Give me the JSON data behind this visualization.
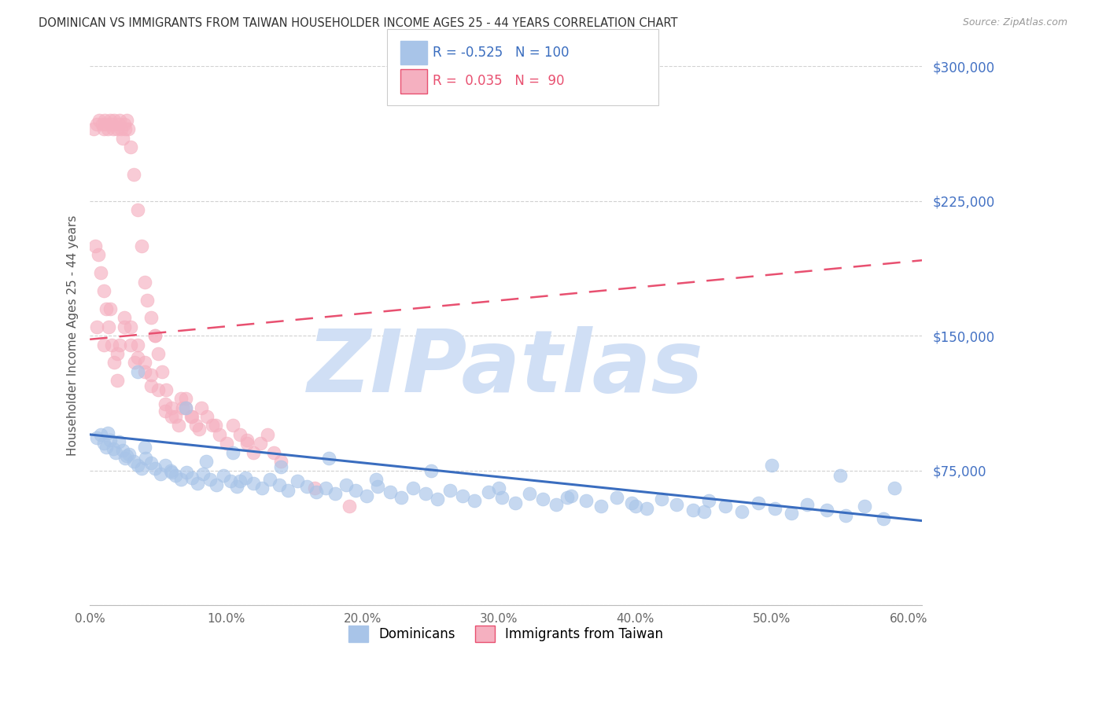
{
  "title": "DOMINICAN VS IMMIGRANTS FROM TAIWAN HOUSEHOLDER INCOME AGES 25 - 44 YEARS CORRELATION CHART",
  "source": "Source: ZipAtlas.com",
  "ylabel": "Householder Income Ages 25 - 44 years",
  "yticks": [
    0,
    75000,
    150000,
    225000,
    300000
  ],
  "ytick_labels": [
    "",
    "$75,000",
    "$150,000",
    "$225,000",
    "$300,000"
  ],
  "xticks": [
    0.0,
    10.0,
    20.0,
    30.0,
    40.0,
    50.0,
    60.0
  ],
  "xtick_labels": [
    "0.0%",
    "10.0%",
    "20.0%",
    "30.0%",
    "40.0%",
    "50.0%",
    "60.0%"
  ],
  "xmin": 0.0,
  "xmax": 61.0,
  "ymin": 0,
  "ymax": 300000,
  "blue_fill": "#a8c4e8",
  "blue_line": "#3a6dbf",
  "pink_fill": "#f5b0c0",
  "pink_edge": "#e85070",
  "pink_line": "#e85070",
  "blue_R": -0.525,
  "blue_N": 100,
  "pink_R": 0.035,
  "pink_N": 90,
  "watermark": "ZIPatlas",
  "watermark_color": "#d0dff5",
  "legend_label_blue": "Dominicans",
  "legend_label_pink": "Immigrants from Taiwan",
  "blue_trend_x0": 0,
  "blue_trend_y0": 95000,
  "blue_trend_x1": 61,
  "blue_trend_y1": 47000,
  "pink_trend_x0": 0,
  "pink_trend_y0": 148000,
  "pink_trend_x1": 61,
  "pink_trend_y1": 192000,
  "blue_x": [
    0.5,
    0.8,
    1.0,
    1.2,
    1.5,
    1.7,
    1.9,
    2.1,
    2.4,
    2.6,
    2.9,
    3.2,
    3.5,
    3.8,
    4.1,
    4.5,
    4.8,
    5.2,
    5.5,
    5.9,
    6.3,
    6.7,
    7.1,
    7.5,
    7.9,
    8.3,
    8.8,
    9.3,
    9.8,
    10.3,
    10.8,
    11.4,
    12.0,
    12.6,
    13.2,
    13.9,
    14.5,
    15.2,
    15.9,
    16.6,
    17.3,
    18.0,
    18.8,
    19.5,
    20.3,
    21.1,
    22.0,
    22.8,
    23.7,
    24.6,
    25.5,
    26.4,
    27.3,
    28.2,
    29.2,
    30.2,
    31.2,
    32.2,
    33.2,
    34.2,
    35.3,
    36.4,
    37.5,
    38.6,
    39.7,
    40.8,
    41.9,
    43.0,
    44.2,
    45.4,
    46.6,
    47.8,
    49.0,
    50.2,
    51.4,
    52.6,
    54.0,
    55.4,
    56.8,
    58.2,
    1.3,
    2.7,
    4.0,
    6.0,
    8.5,
    11.0,
    14.0,
    17.5,
    21.0,
    25.0,
    30.0,
    35.0,
    40.0,
    45.0,
    50.0,
    55.0,
    59.0,
    3.5,
    7.0,
    10.5
  ],
  "blue_y": [
    93000,
    95000,
    90000,
    88000,
    92000,
    87000,
    85000,
    91000,
    86000,
    82000,
    84000,
    80000,
    78000,
    76000,
    82000,
    79000,
    76000,
    73000,
    78000,
    75000,
    72000,
    70000,
    74000,
    71000,
    68000,
    73000,
    70000,
    67000,
    72000,
    69000,
    66000,
    71000,
    68000,
    65000,
    70000,
    67000,
    64000,
    69000,
    66000,
    63000,
    65000,
    62000,
    67000,
    64000,
    61000,
    66000,
    63000,
    60000,
    65000,
    62000,
    59000,
    64000,
    61000,
    58000,
    63000,
    60000,
    57000,
    62000,
    59000,
    56000,
    61000,
    58000,
    55000,
    60000,
    57000,
    54000,
    59000,
    56000,
    53000,
    58000,
    55000,
    52000,
    57000,
    54000,
    51000,
    56000,
    53000,
    50000,
    55000,
    48000,
    96000,
    83000,
    88000,
    74000,
    80000,
    69000,
    77000,
    82000,
    70000,
    75000,
    65000,
    60000,
    55000,
    52000,
    78000,
    72000,
    65000,
    130000,
    110000,
    85000
  ],
  "pink_x": [
    0.3,
    0.5,
    0.7,
    0.9,
    1.0,
    1.1,
    1.2,
    1.3,
    1.5,
    1.6,
    1.7,
    1.8,
    2.0,
    2.1,
    2.2,
    2.3,
    2.4,
    2.5,
    2.6,
    2.7,
    2.8,
    3.0,
    3.2,
    3.5,
    3.8,
    4.0,
    4.2,
    4.5,
    4.8,
    5.0,
    5.3,
    5.6,
    6.0,
    6.3,
    6.7,
    7.0,
    7.4,
    7.8,
    8.2,
    8.6,
    9.0,
    9.5,
    10.0,
    10.5,
    11.0,
    11.5,
    12.0,
    12.5,
    13.0,
    13.5,
    0.4,
    0.6,
    0.8,
    1.0,
    1.2,
    1.4,
    1.6,
    1.8,
    2.0,
    2.5,
    3.0,
    3.5,
    4.0,
    4.5,
    5.0,
    5.5,
    6.0,
    6.5,
    7.0,
    7.5,
    8.0,
    2.2,
    3.3,
    4.8,
    6.8,
    9.2,
    11.5,
    14.0,
    16.5,
    19.0,
    0.5,
    1.0,
    1.5,
    2.0,
    2.5,
    3.0,
    3.5,
    4.0,
    4.5,
    5.5
  ],
  "pink_y": [
    265000,
    268000,
    270000,
    268000,
    265000,
    270000,
    268000,
    265000,
    270000,
    268000,
    265000,
    270000,
    265000,
    268000,
    270000,
    265000,
    260000,
    268000,
    265000,
    270000,
    265000,
    255000,
    240000,
    220000,
    200000,
    180000,
    170000,
    160000,
    150000,
    140000,
    130000,
    120000,
    110000,
    105000,
    115000,
    110000,
    105000,
    100000,
    110000,
    105000,
    100000,
    95000,
    90000,
    100000,
    95000,
    90000,
    85000,
    90000,
    95000,
    85000,
    200000,
    195000,
    185000,
    175000,
    165000,
    155000,
    145000,
    135000,
    125000,
    160000,
    155000,
    145000,
    135000,
    128000,
    120000,
    112000,
    105000,
    100000,
    115000,
    105000,
    98000,
    145000,
    135000,
    150000,
    110000,
    100000,
    92000,
    80000,
    65000,
    55000,
    155000,
    145000,
    165000,
    140000,
    155000,
    145000,
    138000,
    130000,
    122000,
    108000
  ]
}
